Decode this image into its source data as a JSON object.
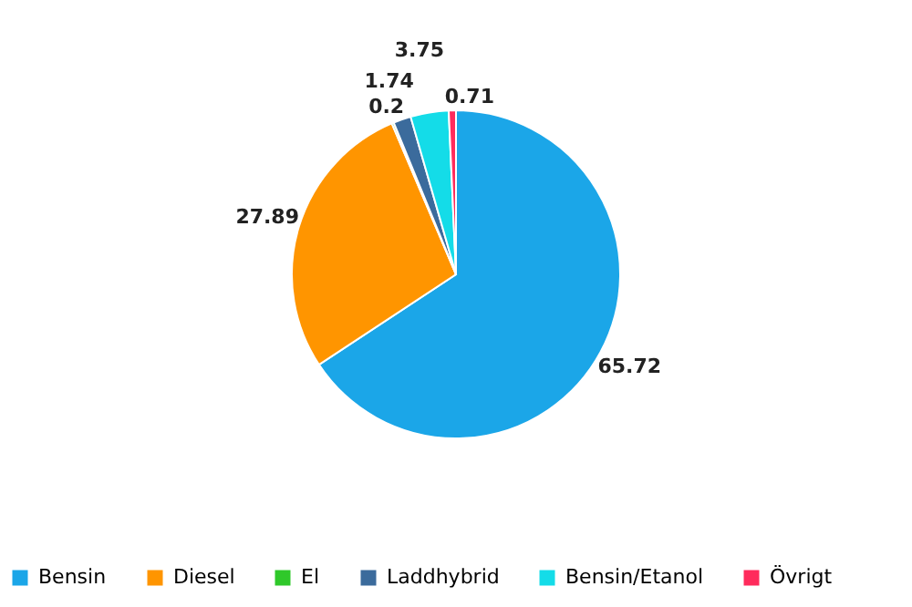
{
  "chart_data": {
    "type": "pie",
    "categories": [
      "Bensin",
      "Diesel",
      "El",
      "Laddhybrid",
      "Bensin/Etanol",
      "Övrigt"
    ],
    "values": [
      65.72,
      27.89,
      0.2,
      1.74,
      3.75,
      0.71
    ],
    "colors": [
      "#1ba6e8",
      "#ff9500",
      "#2fc82a",
      "#3b6b9c",
      "#14dce8",
      "#ff2b5c"
    ],
    "data_labels": true,
    "legend": "bottom"
  }
}
